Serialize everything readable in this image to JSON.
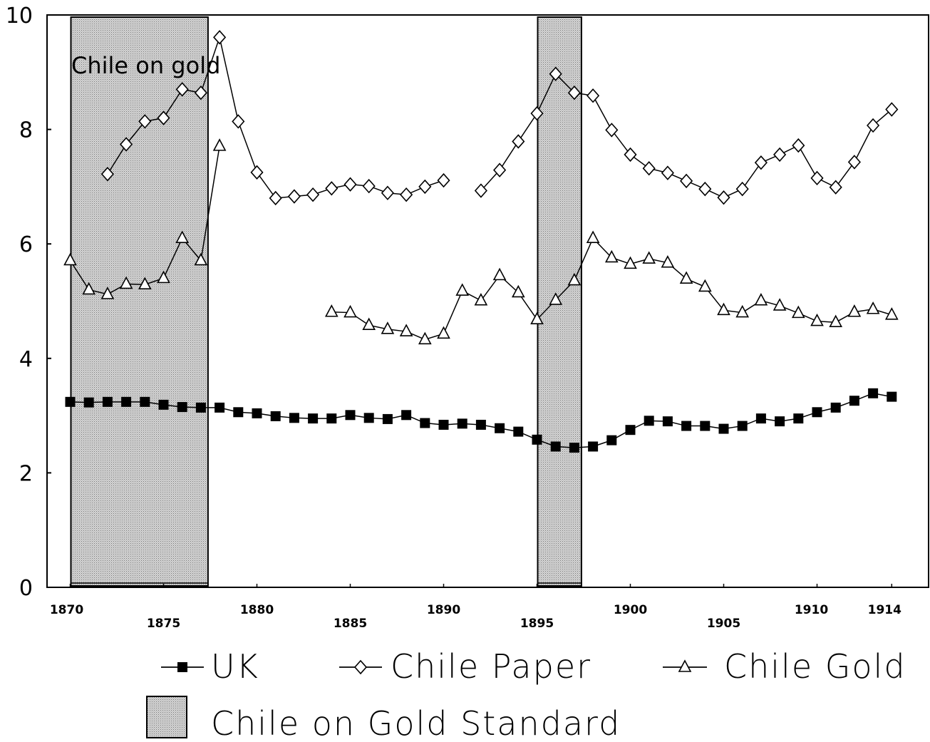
{
  "chart_data": {
    "type": "line",
    "title": "",
    "xlabel": "",
    "ylabel": "",
    "xlim": [
      1870,
      1914
    ],
    "ylim": [
      0,
      10
    ],
    "y_ticks": [
      "0",
      "2",
      "4",
      "6",
      "8",
      "10"
    ],
    "x_ticks": [
      "1870",
      "1875",
      "1880",
      "1885",
      "1890",
      "1895",
      "1900",
      "1905",
      "1910",
      "1914"
    ],
    "grid": false,
    "annotation": "Chile on gold",
    "shaded_periods": [
      {
        "start": 1870,
        "end": 1877,
        "label": "Chile on Gold Standard"
      },
      {
        "start": 1895,
        "end": 1897,
        "label": "Chile on Gold Standard"
      }
    ],
    "series": [
      {
        "name": "UK",
        "marker": "filled-square",
        "x": [
          1870,
          1871,
          1872,
          1873,
          1874,
          1875,
          1876,
          1877,
          1878,
          1879,
          1880,
          1881,
          1882,
          1883,
          1884,
          1885,
          1886,
          1887,
          1888,
          1889,
          1890,
          1891,
          1892,
          1893,
          1894,
          1895,
          1896,
          1897,
          1898,
          1899,
          1900,
          1901,
          1902,
          1903,
          1904,
          1905,
          1906,
          1907,
          1908,
          1909,
          1910,
          1911,
          1912,
          1913,
          1914
        ],
        "y": [
          3.24,
          3.23,
          3.24,
          3.24,
          3.24,
          3.19,
          3.15,
          3.14,
          3.14,
          3.06,
          3.04,
          2.99,
          2.96,
          2.95,
          2.95,
          3.01,
          2.96,
          2.94,
          3.01,
          2.87,
          2.84,
          2.86,
          2.84,
          2.78,
          2.72,
          2.58,
          2.46,
          2.44,
          2.46,
          2.57,
          2.75,
          2.91,
          2.9,
          2.82,
          2.82,
          2.77,
          2.82,
          2.95,
          2.9,
          2.95,
          3.06,
          3.14,
          3.26,
          3.39,
          3.33
        ]
      },
      {
        "name": "Chile Paper",
        "marker": "open-diamond",
        "x": [
          1872,
          1873,
          1874,
          1875,
          1876,
          1877,
          1878,
          1879,
          1880,
          1881,
          1882,
          1883,
          1884,
          1885,
          1886,
          1887,
          1888,
          1889,
          1890,
          null,
          1892,
          1893,
          1894,
          1895,
          1896,
          1897,
          1898,
          1899,
          1900,
          1901,
          1902,
          1903,
          1904,
          1905,
          1906,
          1907,
          1908,
          1909,
          1910,
          1911,
          1912,
          1913,
          1914
        ],
        "y": [
          7.22,
          7.74,
          8.14,
          8.2,
          8.7,
          8.64,
          9.61,
          8.14,
          7.25,
          6.8,
          6.83,
          6.86,
          6.97,
          7.04,
          7.01,
          6.89,
          6.86,
          7.0,
          7.11,
          null,
          6.93,
          7.29,
          7.79,
          8.28,
          8.97,
          8.64,
          8.59,
          7.99,
          7.56,
          7.32,
          7.24,
          7.1,
          6.96,
          6.81,
          6.96,
          7.42,
          7.56,
          7.72,
          7.15,
          6.99,
          7.43,
          8.07,
          8.35
        ]
      },
      {
        "name": "Chile Gold",
        "marker": "open-triangle",
        "x": [
          1870,
          1871,
          1872,
          1873,
          1874,
          1875,
          1876,
          1877,
          1878,
          null,
          1884,
          1885,
          1886,
          1887,
          1888,
          1889,
          1890,
          1891,
          1892,
          1893,
          1894,
          1895,
          1896,
          1897,
          1898,
          1899,
          1900,
          1901,
          1902,
          1903,
          1904,
          1905,
          1906,
          1907,
          1908,
          1909,
          1910,
          1911,
          1912,
          1913,
          1914
        ],
        "y": [
          5.71,
          5.2,
          5.12,
          5.3,
          5.29,
          5.4,
          6.1,
          5.71,
          7.71,
          null,
          4.81,
          4.8,
          4.58,
          4.51,
          4.47,
          4.33,
          4.43,
          5.18,
          5.01,
          5.45,
          5.15,
          4.68,
          5.02,
          5.36,
          6.1,
          5.76,
          5.65,
          5.74,
          5.67,
          5.39,
          5.25,
          4.84,
          4.8,
          5.01,
          4.92,
          4.79,
          4.65,
          4.63,
          4.81,
          4.86,
          4.76
        ]
      }
    ],
    "legend": {
      "placement": "bottom",
      "entries": [
        "UK",
        "Chile Paper",
        "Chile Gold",
        "Chile on Gold Standard"
      ]
    }
  }
}
